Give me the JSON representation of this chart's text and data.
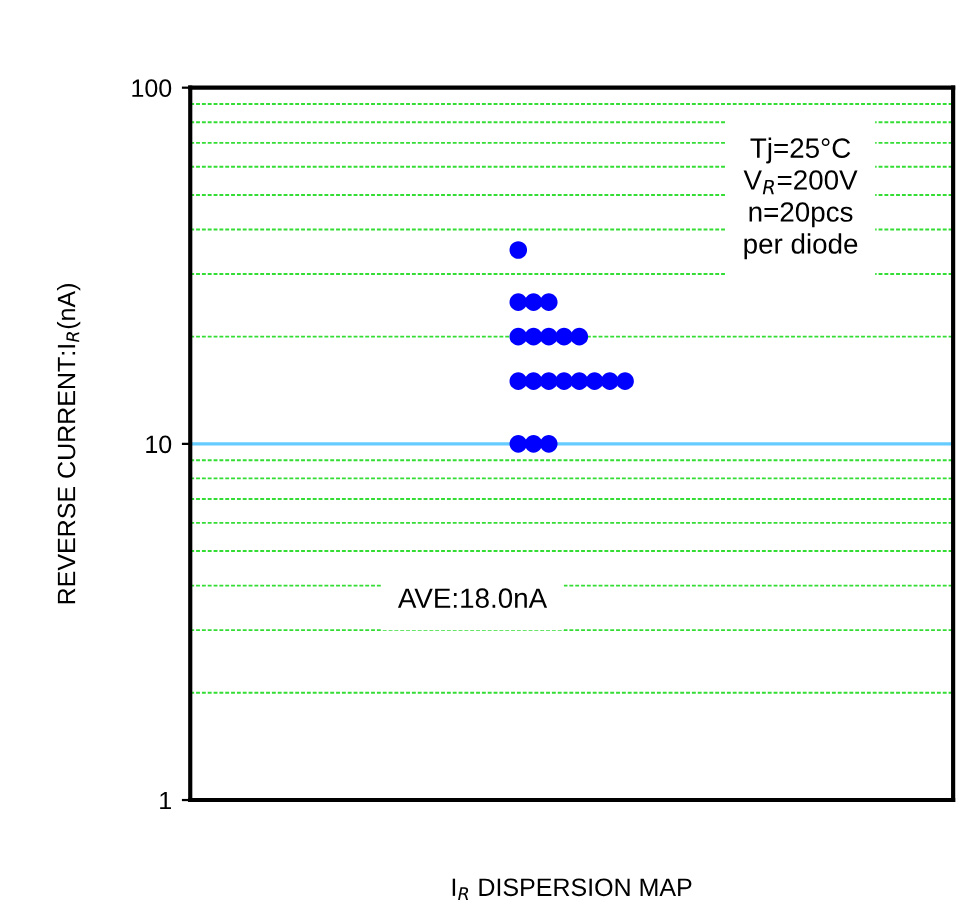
{
  "chart_data": {
    "type": "scatter",
    "xlabel": "I$_{R}$ DISPERSION MAP",
    "ylabel": "REVERSE CURRENT:I$_{R}$(nA)",
    "categories": [
      null,
      null,
      null,
      null,
      null,
      null,
      null,
      null,
      null,
      null,
      null,
      null,
      null,
      null,
      null,
      null,
      null,
      null,
      null,
      null,
      null,
      null,
      null,
      null,
      null,
      null,
      null,
      null,
      null,
      null,
      null,
      null,
      null,
      null,
      null,
      null,
      null,
      null,
      null,
      null,
      null,
      null,
      null,
      null,
      null,
      null,
      null,
      null,
      null,
      null
    ],
    "series": [
      {
        "color": "#0000ff",
        "values": [
          null,
          null,
          null,
          null,
          null,
          null,
          null,
          null,
          null,
          null,
          null,
          null,
          null,
          null,
          null,
          null,
          null,
          null,
          null,
          null,
          null,
          35,
          null,
          null,
          null,
          null,
          null,
          null,
          null,
          null,
          null,
          null,
          null,
          null,
          null,
          null,
          null,
          null,
          null,
          null,
          null,
          null,
          null,
          null,
          null,
          null,
          null,
          null,
          null,
          null
        ]
      },
      {
        "color": "#0000ff",
        "values": [
          null,
          null,
          null,
          null,
          null,
          null,
          null,
          null,
          null,
          null,
          null,
          null,
          null,
          null,
          null,
          null,
          null,
          null,
          null,
          null,
          null,
          25,
          25,
          25,
          null,
          null,
          null,
          null,
          null,
          null,
          null,
          null,
          null,
          null,
          null,
          null,
          null,
          null,
          null,
          null,
          null,
          null,
          null,
          null,
          null,
          null,
          null,
          null,
          null,
          null
        ]
      },
      {
        "color": "#0000ff",
        "values": [
          null,
          null,
          null,
          null,
          null,
          null,
          null,
          null,
          null,
          null,
          null,
          null,
          null,
          null,
          null,
          null,
          null,
          null,
          null,
          null,
          null,
          20,
          20,
          20,
          20,
          20,
          null,
          null,
          null,
          null,
          null,
          null,
          null,
          null,
          null,
          null,
          null,
          null,
          null,
          null,
          null,
          null,
          null,
          null,
          null,
          null,
          null,
          null,
          null,
          null
        ]
      },
      {
        "color": "#0000ff",
        "values": [
          null,
          null,
          null,
          null,
          null,
          null,
          null,
          null,
          null,
          null,
          null,
          null,
          null,
          null,
          null,
          null,
          null,
          null,
          null,
          null,
          null,
          15,
          15,
          15,
          15,
          15,
          15,
          15,
          15,
          null,
          null,
          null,
          null,
          null,
          null,
          null,
          null,
          null,
          null,
          null,
          null,
          null,
          null,
          null,
          null,
          null,
          null,
          null,
          null,
          null
        ]
      },
      {
        "color": "#0000ff",
        "values": [
          null,
          null,
          null,
          null,
          null,
          null,
          null,
          null,
          null,
          null,
          null,
          null,
          null,
          null,
          null,
          null,
          null,
          null,
          null,
          null,
          null,
          10,
          10,
          10,
          null,
          null,
          null,
          null,
          null,
          null,
          null,
          null,
          null,
          null,
          null,
          null,
          null,
          null,
          null,
          null,
          null,
          null,
          null,
          null,
          null,
          null,
          null,
          null,
          null,
          null
        ]
      }
    ],
    "log": "y",
    "ylim": [
      1,
      100
    ],
    "yticks": [
      1,
      10,
      100
    ],
    "marker": "circle",
    "ref_lines": [
      {
        "axis": "y",
        "value": 2,
        "color": "#33dd33",
        "line_style": "dashed"
      },
      {
        "axis": "y",
        "value": 3,
        "color": "#33dd33",
        "line_style": "dashed"
      },
      {
        "axis": "y",
        "value": 4,
        "color": "#33dd33",
        "line_style": "dashed"
      },
      {
        "axis": "y",
        "value": 5,
        "color": "#33dd33",
        "line_style": "dashed"
      },
      {
        "axis": "y",
        "value": 6,
        "color": "#33dd33",
        "line_style": "dashed"
      },
      {
        "axis": "y",
        "value": 7,
        "color": "#33dd33",
        "line_style": "dashed"
      },
      {
        "axis": "y",
        "value": 8,
        "color": "#33dd33",
        "line_style": "dashed"
      },
      {
        "axis": "y",
        "value": 9,
        "color": "#33dd33",
        "line_style": "dashed"
      },
      {
        "axis": "y",
        "value": 10,
        "color": "#66ccff",
        "line_style": "solid"
      },
      {
        "axis": "y",
        "value": 20,
        "color": "#33dd33",
        "line_style": "dashed"
      },
      {
        "axis": "y",
        "value": 30,
        "color": "#33dd33",
        "line_style": "dashed"
      },
      {
        "axis": "y",
        "value": 40,
        "color": "#33dd33",
        "line_style": "dashed"
      },
      {
        "axis": "y",
        "value": 50,
        "color": "#33dd33",
        "line_style": "dashed"
      },
      {
        "axis": "y",
        "value": 60,
        "color": "#33dd33",
        "line_style": "dashed"
      },
      {
        "axis": "y",
        "value": 70,
        "color": "#33dd33",
        "line_style": "dashed"
      },
      {
        "axis": "y",
        "value": 80,
        "color": "#33dd33",
        "line_style": "dashed"
      },
      {
        "axis": "y",
        "value": 90,
        "color": "#33dd33",
        "line_style": "dashed"
      }
    ],
    "annotations": [
      "Tj=25°C\nV$_{R}$=200V\nn=20pcs\nper diode",
      "AVE:18.0nA"
    ]
  }
}
